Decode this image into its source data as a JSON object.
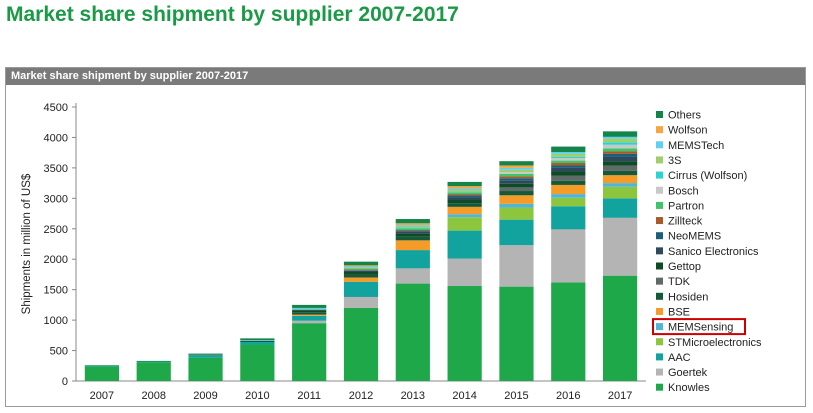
{
  "page": {
    "title": "Market share shipment by supplier 2007-2017"
  },
  "panel": {
    "header": "Market share shipment by supplier 2007-2017"
  },
  "chart_data": {
    "type": "bar",
    "stacked": true,
    "title": "Market share shipment by supplier 2007-2017",
    "xlabel": "",
    "ylabel": "Shipments in million of US$",
    "ylim": [
      0,
      4500
    ],
    "yticks": [
      0,
      500,
      1000,
      1500,
      2000,
      2500,
      3000,
      3500,
      4000,
      4500
    ],
    "grid": false,
    "legend_position": "right",
    "categories": [
      "2007",
      "2008",
      "2009",
      "2010",
      "2011",
      "2012",
      "2013",
      "2014",
      "2015",
      "2016",
      "2017"
    ],
    "series": [
      {
        "name": "Knowles",
        "color": "#1ea84a",
        "values": [
          240,
          310,
          380,
          600,
          950,
          1200,
          1600,
          1560,
          1550,
          1620,
          1730
        ]
      },
      {
        "name": "Goertek",
        "color": "#b4b4b4",
        "values": [
          0,
          0,
          0,
          0,
          40,
          180,
          250,
          450,
          680,
          870,
          950
        ]
      },
      {
        "name": "AAC",
        "color": "#13a39e",
        "values": [
          10,
          10,
          30,
          40,
          80,
          250,
          300,
          460,
          420,
          380,
          320
        ]
      },
      {
        "name": "STMicroelectronics",
        "color": "#8cc63f",
        "values": [
          0,
          0,
          0,
          0,
          0,
          0,
          0,
          220,
          200,
          140,
          190
        ]
      },
      {
        "name": "MEMSensing",
        "color": "#4fb6d9",
        "values": [
          0,
          0,
          0,
          0,
          0,
          0,
          0,
          50,
          60,
          60,
          60
        ]
      },
      {
        "name": "BSE",
        "color": "#f59b27",
        "values": [
          0,
          0,
          0,
          0,
          20,
          70,
          160,
          120,
          140,
          150,
          130
        ]
      },
      {
        "name": "Hosiden",
        "color": "#145a3a",
        "values": [
          0,
          0,
          10,
          20,
          40,
          50,
          60,
          60,
          70,
          70,
          70
        ]
      },
      {
        "name": "TDK",
        "color": "#5e6b66",
        "values": [
          0,
          0,
          0,
          0,
          0,
          0,
          0,
          0,
          60,
          80,
          90
        ]
      },
      {
        "name": "Gettop",
        "color": "#0d4a25",
        "values": [
          0,
          0,
          0,
          0,
          30,
          40,
          50,
          60,
          60,
          70,
          70
        ]
      },
      {
        "name": "Sanico Electronics",
        "color": "#2e4a5a",
        "values": [
          0,
          0,
          0,
          0,
          10,
          20,
          30,
          40,
          50,
          60,
          70
        ]
      },
      {
        "name": "NeoMEMS",
        "color": "#1c5f7a",
        "values": [
          0,
          0,
          0,
          0,
          0,
          10,
          20,
          30,
          40,
          40,
          50
        ]
      },
      {
        "name": "Zillteck",
        "color": "#a85a28",
        "values": [
          0,
          0,
          0,
          0,
          0,
          10,
          10,
          20,
          30,
          40,
          40
        ]
      },
      {
        "name": "Partron",
        "color": "#3ec46a",
        "values": [
          0,
          0,
          0,
          0,
          10,
          20,
          30,
          30,
          40,
          40,
          50
        ]
      },
      {
        "name": "Bosch",
        "color": "#c8c8c8",
        "values": [
          0,
          0,
          0,
          0,
          0,
          0,
          0,
          0,
          30,
          40,
          60
        ]
      },
      {
        "name": "Cirrus (Wolfson)",
        "color": "#2ad4d4",
        "values": [
          0,
          0,
          0,
          0,
          0,
          0,
          0,
          0,
          0,
          20,
          40
        ]
      },
      {
        "name": "3S",
        "color": "#9ecf68",
        "values": [
          0,
          0,
          0,
          0,
          0,
          10,
          20,
          30,
          40,
          50,
          60
        ]
      },
      {
        "name": "MEMSTech",
        "color": "#5fd0f0",
        "values": [
          0,
          0,
          10,
          10,
          20,
          20,
          30,
          30,
          30,
          30,
          30
        ]
      },
      {
        "name": "Wolfson",
        "color": "#f5a640",
        "values": [
          0,
          0,
          0,
          0,
          0,
          20,
          30,
          40,
          40,
          0,
          0
        ]
      },
      {
        "name": "Others",
        "color": "#15844a",
        "values": [
          10,
          10,
          20,
          30,
          50,
          60,
          70,
          70,
          70,
          90,
          90
        ]
      }
    ],
    "highlighted_legend_entry": "MEMSensing",
    "highlight_color": "#cc0000"
  }
}
